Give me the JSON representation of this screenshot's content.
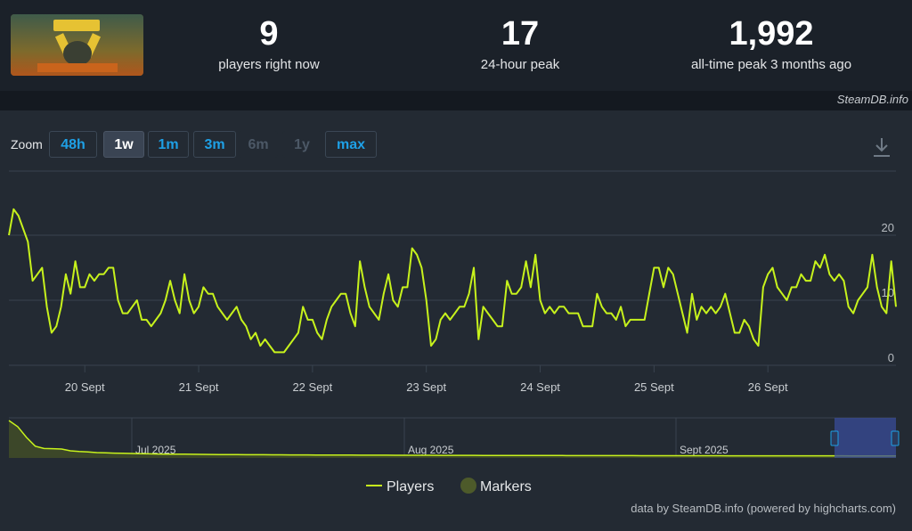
{
  "stats": [
    {
      "value": "9",
      "label": "players right now"
    },
    {
      "value": "17",
      "label": "24-hour peak"
    },
    {
      "value": "1,992",
      "label": "all-time peak 3 months ago"
    }
  ],
  "credit_top": "SteamDB.info",
  "zoom": {
    "label": "Zoom",
    "buttons": [
      "48h",
      "1w",
      "1m",
      "3m",
      "6m",
      "1y",
      "max"
    ],
    "active": "1w",
    "disabled": [
      "6m",
      "1y"
    ]
  },
  "footer": "data by SteamDB.info (powered by highcharts.com)",
  "colors": {
    "line": "#c7f21c",
    "marker": "#4d5a2a",
    "background": "#232a33"
  },
  "chart_data": {
    "type": "line",
    "title": "",
    "xlabel": "",
    "ylabel": "",
    "ylim": [
      0,
      25
    ],
    "y_ticks": [
      "0",
      "10",
      "20"
    ],
    "x_ticks": [
      "20 Sept",
      "21 Sept",
      "22 Sept",
      "23 Sept",
      "24 Sept",
      "25 Sept",
      "26 Sept"
    ],
    "grid": true,
    "legend": [
      "Players",
      "Markers"
    ],
    "legend_position": "bottom",
    "series": [
      {
        "name": "Players",
        "x_start": "2025-09-19T08:00",
        "x_step_hours": 1,
        "values": [
          20,
          24,
          23,
          21,
          19,
          13,
          14,
          15,
          9,
          5,
          6,
          9,
          14,
          11,
          16,
          12,
          12,
          14,
          13,
          14,
          14,
          15,
          15,
          10,
          8,
          8,
          9,
          10,
          7,
          7,
          6,
          7,
          8,
          10,
          13,
          10,
          8,
          14,
          10,
          8,
          9,
          12,
          11,
          11,
          9,
          8,
          7,
          8,
          9,
          7,
          6,
          4,
          5,
          3,
          4,
          3,
          2,
          2,
          2,
          3,
          4,
          5,
          9,
          7,
          7,
          5,
          4,
          7,
          9,
          10,
          11,
          11,
          8,
          6,
          16,
          12,
          9,
          8,
          7,
          11,
          14,
          10,
          9,
          12,
          12,
          18,
          17,
          15,
          10,
          3,
          4,
          7,
          8,
          7,
          8,
          9,
          9,
          11,
          15,
          4,
          9,
          8,
          7,
          6,
          6,
          13,
          11,
          11,
          12,
          16,
          12,
          17,
          10,
          8,
          9,
          8,
          9,
          9,
          8,
          8,
          8,
          6,
          6,
          6,
          11,
          9,
          8,
          8,
          7,
          9,
          6,
          7,
          7,
          7,
          7,
          11,
          15,
          15,
          12,
          15,
          14,
          11,
          8,
          5,
          11,
          7,
          9,
          8,
          9,
          8,
          9,
          11,
          8,
          5,
          5,
          7,
          6,
          4,
          3,
          12,
          14,
          15,
          12,
          11,
          10,
          12,
          12,
          14,
          13,
          13,
          16,
          15,
          17,
          14,
          13,
          14,
          13,
          9,
          8,
          10,
          11,
          12,
          17,
          12,
          9,
          8,
          16,
          9
        ]
      }
    ],
    "navigator": {
      "x_ticks": [
        "Jul 2025",
        "Aug 2025",
        "Sept 2025"
      ],
      "range": [
        "2025-06-17",
        "2025-09-26"
      ],
      "daily_peak": [
        1992,
        1650,
        1050,
        560,
        430,
        420,
        400,
        300,
        260,
        240,
        200,
        185,
        170,
        160,
        150,
        140,
        130,
        120,
        115,
        110,
        108,
        105,
        100,
        95,
        90,
        88,
        85,
        82,
        80,
        78,
        76,
        74,
        72,
        70,
        68,
        66,
        64,
        62,
        60,
        58,
        56,
        55,
        54,
        53,
        52,
        51,
        50,
        49,
        48,
        47,
        46,
        45,
        44,
        43,
        42,
        41,
        40,
        39,
        38,
        37,
        36,
        35,
        34,
        33,
        32,
        31,
        30,
        30,
        29,
        29,
        28,
        28,
        27,
        27,
        26,
        26,
        25,
        25,
        24,
        24,
        23,
        23,
        22,
        22,
        21,
        21,
        20,
        20,
        20,
        19,
        19,
        19,
        18,
        18,
        18,
        18,
        17,
        17,
        17,
        17,
        17,
        17
      ]
    }
  }
}
